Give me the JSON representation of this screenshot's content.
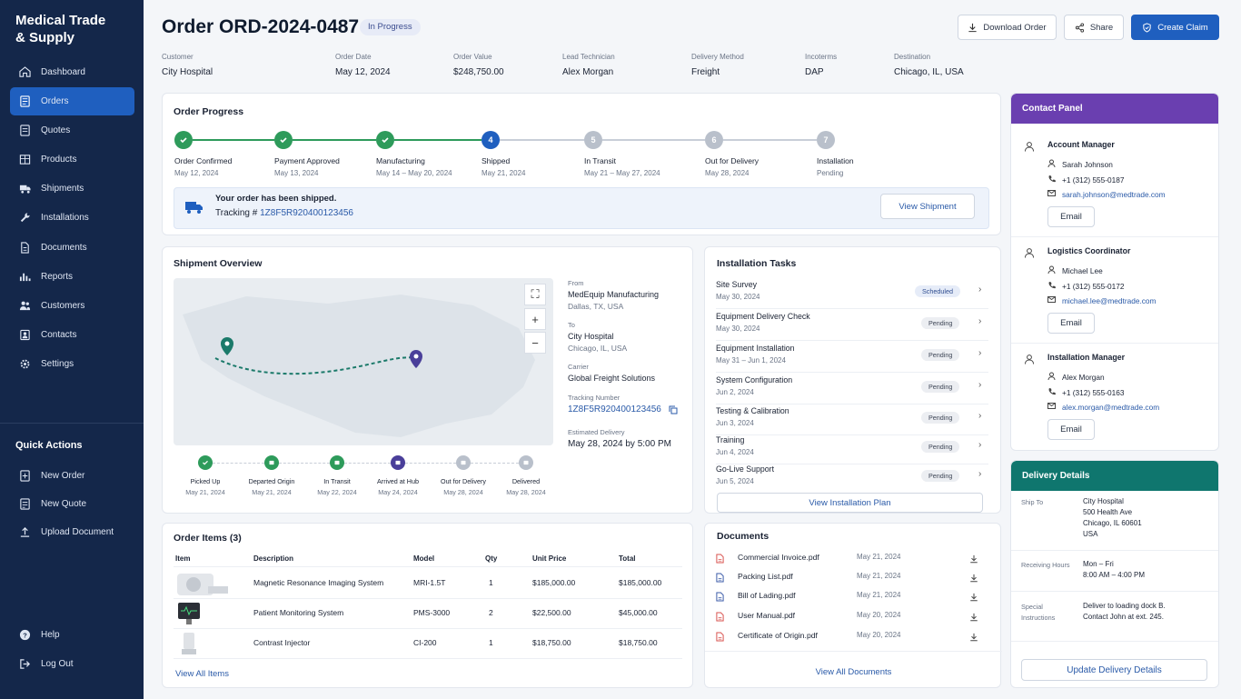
{
  "brand": "Medical Trade & Supply",
  "nav": [
    {
      "label": "Dashboard",
      "icon": "home-icon"
    },
    {
      "label": "Orders",
      "icon": "orders-icon"
    },
    {
      "label": "Quotes",
      "icon": "quotes-icon"
    },
    {
      "label": "Products",
      "icon": "products-icon"
    },
    {
      "label": "Shipments",
      "icon": "truck-icon"
    },
    {
      "label": "Installations",
      "icon": "wrench-icon"
    },
    {
      "label": "Documents",
      "icon": "document-icon"
    },
    {
      "label": "Reports",
      "icon": "chart-icon"
    },
    {
      "label": "Customers",
      "icon": "users-icon"
    },
    {
      "label": "Contacts",
      "icon": "contacts-icon"
    },
    {
      "label": "Settings",
      "icon": "gear-icon"
    }
  ],
  "quick_actions": {
    "title": "Quick Actions",
    "items": [
      {
        "label": "New Order"
      },
      {
        "label": "New Quote"
      },
      {
        "label": "Upload Document"
      }
    ]
  },
  "footer_nav": [
    {
      "label": "Help"
    },
    {
      "label": "Log Out"
    }
  ],
  "header": {
    "title": "Order ORD-2024-0487",
    "status": "In Progress",
    "download": "Download Order",
    "share": "Share",
    "create_claim": "Create Claim"
  },
  "meta": [
    {
      "label": "Customer",
      "value": "City Hospital"
    },
    {
      "label": "Order Date",
      "value": "May 12, 2024"
    },
    {
      "label": "Order Value",
      "value": "$248,750.00"
    },
    {
      "label": "Lead Technician",
      "value": "Alex Morgan"
    },
    {
      "label": "Delivery Method",
      "value": "Freight"
    },
    {
      "label": "Incoterms",
      "value": "DAP"
    },
    {
      "label": "Destination",
      "value": "Chicago, IL, USA"
    }
  ],
  "progress": {
    "title": "Order Progress",
    "steps": [
      {
        "label": "Order Confirmed",
        "date": "May 12, 2024",
        "state": "done",
        "num": "1"
      },
      {
        "label": "Payment Approved",
        "date": "May 13, 2024",
        "state": "done",
        "num": "2"
      },
      {
        "label": "Manufacturing",
        "date": "May 14 – May 20, 2024",
        "state": "done",
        "num": "3"
      },
      {
        "label": "Shipped",
        "date": "May 21, 2024",
        "state": "current",
        "num": "4"
      },
      {
        "label": "In Transit",
        "date": "May 21 – May 27, 2024",
        "state": "pending",
        "num": "5"
      },
      {
        "label": "Out for Delivery",
        "date": "May 28, 2024",
        "state": "pending",
        "num": "6"
      },
      {
        "label": "Installation",
        "date": "Pending",
        "state": "pending",
        "num": "7"
      }
    ],
    "banner_title": "Your order has been shipped.",
    "banner_tracking_label": "Tracking #",
    "banner_tracking": "1Z8F5R920400123456",
    "view_shipment": "View Shipment"
  },
  "shipment": {
    "title": "Shipment Overview",
    "from_label": "From",
    "from_name": "MedEquip Manufacturing",
    "from_city": "Dallas, TX, USA",
    "to_label": "To",
    "to_name": "City Hospital",
    "to_city": "Chicago, IL, USA",
    "carrier_label": "Carrier",
    "carrier": "Global Freight Solutions",
    "tracking_label": "Tracking Number",
    "tracking": "1Z8F5R920400123456",
    "eta_label": "Estimated Delivery",
    "eta": "May 28, 2024 by 5:00 PM",
    "timeline": [
      {
        "label": "Picked Up",
        "date": "May 21, 2024",
        "icon": "check-icon"
      },
      {
        "label": "Departed Origin",
        "date": "May 21, 2024",
        "icon": "truck-icon"
      },
      {
        "label": "In Transit",
        "date": "May 22, 2024",
        "icon": "truck-icon"
      },
      {
        "label": "Arrived at Hub",
        "date": "May 24, 2024",
        "icon": "warehouse-icon"
      },
      {
        "label": "Out for Delivery",
        "date": "May 28, 2024",
        "icon": "truck-icon"
      },
      {
        "label": "Delivered",
        "date": "May 28, 2024",
        "icon": "box-icon"
      }
    ]
  },
  "items": {
    "title": "Order Items (3)",
    "headers": [
      "Item",
      "Description",
      "Model",
      "Qty",
      "Unit Price",
      "Total"
    ],
    "rows": [
      {
        "description": "Magnetic Resonance Imaging System",
        "model": "MRI-1.5T",
        "qty": "1",
        "unit": "$185,000.00",
        "total": "$185,000.00"
      },
      {
        "description": "Patient Monitoring System",
        "model": "PMS-3000",
        "qty": "2",
        "unit": "$22,500.00",
        "total": "$45,000.00"
      },
      {
        "description": "Contrast Injector",
        "model": "CI-200",
        "qty": "1",
        "unit": "$18,750.00",
        "total": "$18,750.00"
      }
    ],
    "view_all": "View All Items"
  },
  "tasks": {
    "title": "Installation Tasks",
    "rows": [
      {
        "name": "Site Survey",
        "date": "May 30, 2024",
        "status": "Scheduled"
      },
      {
        "name": "Equipment Delivery Check",
        "date": "May 30, 2024",
        "status": "Pending"
      },
      {
        "name": "Equipment Installation",
        "date": "May 31 – Jun 1, 2024",
        "status": "Pending"
      },
      {
        "name": "System Configuration",
        "date": "Jun 2, 2024",
        "status": "Pending"
      },
      {
        "name": "Testing & Calibration",
        "date": "Jun 3, 2024",
        "status": "Pending"
      },
      {
        "name": "Training",
        "date": "Jun 4, 2024",
        "status": "Pending"
      },
      {
        "name": "Go-Live Support",
        "date": "Jun 5, 2024",
        "status": "Pending"
      }
    ],
    "view_plan": "View Installation Plan"
  },
  "documents": {
    "title": "Documents",
    "rows": [
      {
        "name": "Commercial Invoice.pdf",
        "date": "May 21, 2024",
        "type": "pdf"
      },
      {
        "name": "Packing List.pdf",
        "date": "May 21, 2024",
        "type": "doc"
      },
      {
        "name": "Bill of Lading.pdf",
        "date": "May 21, 2024",
        "type": "doc"
      },
      {
        "name": "User Manual.pdf",
        "date": "May 20, 2024",
        "type": "pdf"
      },
      {
        "name": "Certificate of Origin.pdf",
        "date": "May 20, 2024",
        "type": "pdf"
      }
    ],
    "view_all": "View All Documents"
  },
  "contacts": {
    "title": "Contact Panel",
    "rows": [
      {
        "role": "Account Manager",
        "name": "Sarah Johnson",
        "phone": "+1 (312) 555-0187",
        "email": "sarah.johnson@medtrade.com",
        "button": "Email"
      },
      {
        "role": "Logistics Coordinator",
        "name": "Michael Lee",
        "phone": "+1 (312) 555-0172",
        "email": "michael.lee@medtrade.com",
        "button": "Email"
      },
      {
        "role": "Installation Manager",
        "name": "Alex Morgan",
        "phone": "+1 (312) 555-0163",
        "email": "alex.morgan@medtrade.com",
        "button": "Email"
      }
    ]
  },
  "delivery": {
    "title": "Delivery Details",
    "ship_to_label": "Ship To",
    "ship_to": [
      "City Hospital",
      "500 Health Ave",
      "Chicago, IL 60601",
      "USA"
    ],
    "hours_label": "Receiving Hours",
    "hours": [
      "Mon – Fri",
      "8:00 AM – 4:00 PM"
    ],
    "instructions_label": [
      "Special",
      "Instructions"
    ],
    "instructions": [
      "Deliver to loading dock B.",
      "Contact John at ext. 245."
    ],
    "update": "Update Delivery Details"
  },
  "colors": {
    "sidebar": "#14274a",
    "primary": "#1f5fbf",
    "done": "#2e9b5b",
    "contact_header": "#6a3fb0",
    "delivery_header": "#0f766e"
  }
}
